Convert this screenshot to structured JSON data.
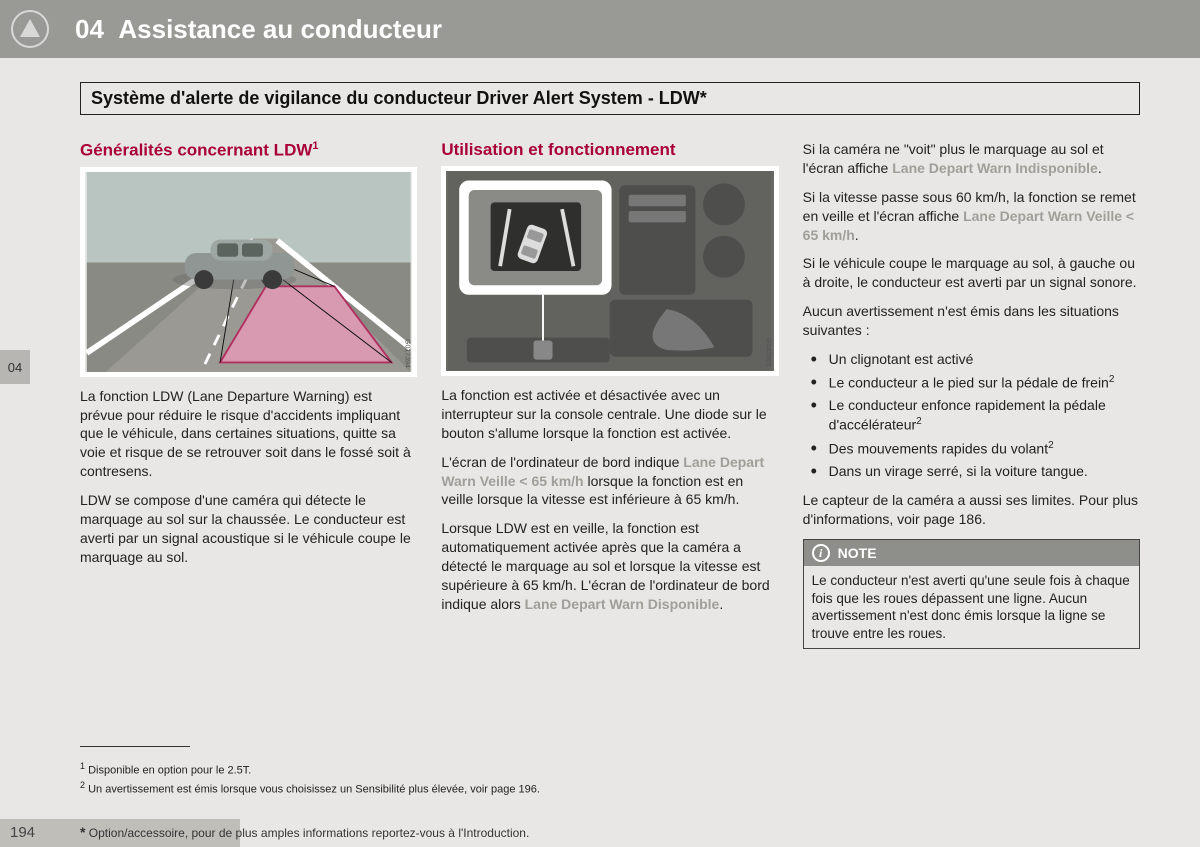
{
  "header": {
    "chapter_num": "04",
    "chapter_title": "Assistance au conducteur"
  },
  "section_box": "Système d'alerte de vigilance du conducteur Driver Alert System - LDW*",
  "side_tab": "04",
  "col1": {
    "title": "Généralités concernant LDW",
    "title_sup": "1",
    "img_code": "G017394",
    "p1": "La fonction LDW (Lane Departure Warning) est prévue pour réduire le risque d'accidents impliquant que le véhicule, dans certaines situations, quitte sa voie et risque de se retrouver soit dans le fossé soit à contresens.",
    "p2": "LDW se compose d'une caméra qui détecte le marquage au sol sur la chaussée. Le conducteur est averti par un signal acoustique si le véhicule coupe le marquage au sol."
  },
  "col2": {
    "title": "Utilisation et fonctionnement",
    "img_code": "G042861",
    "p1": "La fonction est activée et désactivée avec un interrupteur sur la console centrale. Une diode sur le bouton s'allume lorsque la fonction est activée.",
    "p2a": "L'écran de l'ordinateur de bord indique ",
    "p2_msg": "Lane Depart Warn Veille < 65 km/h",
    "p2b": " lorsque la fonction est en veille lorsque la vitesse est inférieure à 65 km/h.",
    "p3a": "Lorsque LDW est en veille, la fonction est automatiquement activée après que la caméra a détecté le marquage au sol et lorsque la vitesse est supérieure à 65 km/h. L'écran de l'ordinateur de bord indique alors ",
    "p3_msg": "Lane Depart Warn Disponible",
    "p3b": "."
  },
  "col3": {
    "p1a": "Si la caméra ne \"voit\" plus le marquage au sol et l'écran affiche ",
    "p1_msg": "Lane Depart Warn Indisponible",
    "p1b": ".",
    "p2a": "Si la vitesse passe sous 60 km/h, la fonction se remet en veille et l'écran affiche ",
    "p2_msg": "Lane Depart Warn Veille < 65 km/h",
    "p2b": ".",
    "p3": "Si le véhicule coupe le marquage au sol, à gauche ou à droite, le conducteur est averti par un signal sonore.",
    "p4": "Aucun avertissement n'est émis dans les situations suivantes :",
    "bullets": [
      {
        "text": "Un clignotant est activé",
        "sup": ""
      },
      {
        "text": "Le conducteur a le pied sur la pédale de frein",
        "sup": "2"
      },
      {
        "text": "Le conducteur enfonce rapidement la pédale d'accélérateur",
        "sup": "2"
      },
      {
        "text": "Des mouvements rapides du volant",
        "sup": "2"
      },
      {
        "text": "Dans un virage serré, si la voiture tangue.",
        "sup": ""
      }
    ],
    "p5": "Le capteur de la caméra a aussi ses limites. Pour plus d'informations, voir page 186.",
    "note_title": "NOTE",
    "note_body": "Le conducteur n'est averti qu'une seule fois à chaque fois que les roues dépassent une ligne. Aucun avertissement n'est donc émis lorsque la ligne se trouve entre les roues."
  },
  "footnotes": {
    "fn1": "Disponible en option pour le 2.5T.",
    "fn2": "Un avertissement est émis lorsque vous choisissez un Sensibilité plus élevée, voir page 196."
  },
  "footer": {
    "page": "194",
    "text": "Option/accessoire, pour de plus amples informations reportez-vous à l'Introduction."
  },
  "figure1": {
    "sky": "#b8c5c0",
    "road": "#8a8a85",
    "lane_fill": "#d89ab0",
    "car": "#8f9694"
  },
  "figure2": {
    "panel": "#6a6a67",
    "dark": "#4e4e4c",
    "popup_border": "#ffffff",
    "screen": "#3a3a38"
  }
}
